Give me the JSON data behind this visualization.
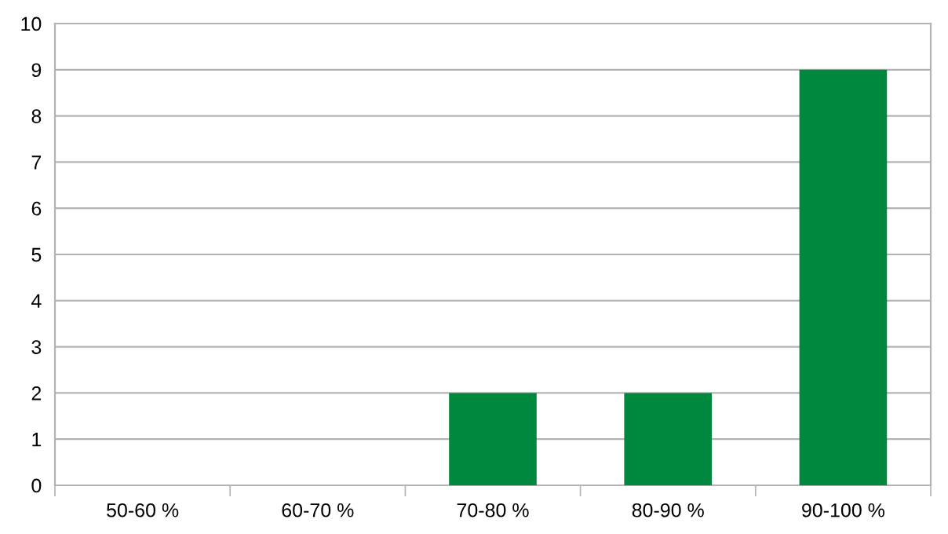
{
  "chart_data": {
    "type": "bar",
    "categories": [
      "50-60 %",
      "60-70 %",
      "70-80 %",
      "80-90 %",
      "90-100 %"
    ],
    "values": [
      0,
      0,
      2,
      2,
      9
    ],
    "color": "#00883f",
    "ylim": [
      0,
      10
    ],
    "yticks": [
      0,
      1,
      2,
      3,
      4,
      5,
      6,
      7,
      8,
      9,
      10
    ],
    "grid": "y",
    "legend": false
  }
}
